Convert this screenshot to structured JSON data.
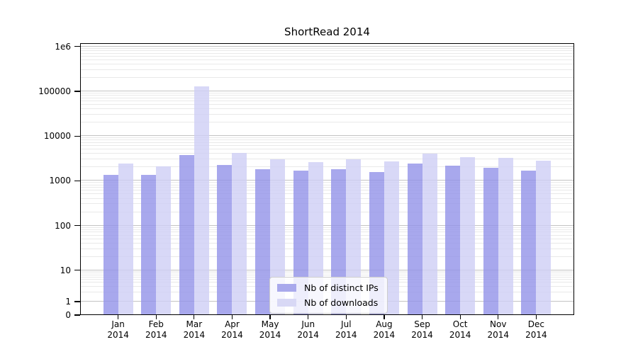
{
  "chart_data": {
    "type": "bar",
    "title": "ShortRead 2014",
    "xlabel": "",
    "ylabel": "",
    "yscale": "log-with-zero-baseline",
    "ylim": [
      0,
      1200000
    ],
    "grid": "both-major-and-minor-horizontal",
    "legend_position": "lower-center-inside-plot",
    "categories": [
      "Jan",
      "Feb",
      "Mar",
      "Apr",
      "May",
      "Jun",
      "Jul",
      "Aug",
      "Sep",
      "Oct",
      "Nov",
      "Dec"
    ],
    "x_labels": [
      {
        "top": "Jan",
        "bottom": "2014"
      },
      {
        "top": "Feb",
        "bottom": "2014"
      },
      {
        "top": "Mar",
        "bottom": "2014"
      },
      {
        "top": "Apr",
        "bottom": "2014"
      },
      {
        "top": "May",
        "bottom": "2014"
      },
      {
        "top": "Jun",
        "bottom": "2014"
      },
      {
        "top": "Jul",
        "bottom": "2014"
      },
      {
        "top": "Aug",
        "bottom": "2014"
      },
      {
        "top": "Sep",
        "bottom": "2014"
      },
      {
        "top": "Oct",
        "bottom": "2014"
      },
      {
        "top": "Nov",
        "bottom": "2014"
      },
      {
        "top": "Dec",
        "bottom": "2014"
      }
    ],
    "y_ticks": [
      {
        "label": "1e6",
        "value": 1000000
      },
      {
        "label": "100000",
        "value": 100000
      },
      {
        "label": "10000",
        "value": 10000
      },
      {
        "label": "1000",
        "value": 1000
      },
      {
        "label": "100",
        "value": 100
      },
      {
        "label": "10",
        "value": 10
      },
      {
        "label": "1",
        "value": 1
      },
      {
        "label": "0",
        "value": 0
      }
    ],
    "series": [
      {
        "name": "Nb of distinct IPs",
        "swatch_color": "#a9a9ec",
        "fill": "rgba(146,146,232,0.8)",
        "values": [
          1350,
          1350,
          3800,
          2250,
          1800,
          1700,
          1850,
          1550,
          2400,
          2150,
          1950,
          1700
        ]
      },
      {
        "name": "Nb of downloads",
        "swatch_color": "#d8d8f5",
        "fill": "rgba(206,206,245,0.8)",
        "values": [
          2400,
          2100,
          130000,
          4200,
          3050,
          2650,
          3050,
          2700,
          4000,
          3400,
          3300,
          2800
        ]
      }
    ],
    "colors": {
      "major_grid": "#c3c3c3",
      "minor_grid": "#e9e9e9",
      "spine": "#000000",
      "background": "#ffffff"
    }
  }
}
